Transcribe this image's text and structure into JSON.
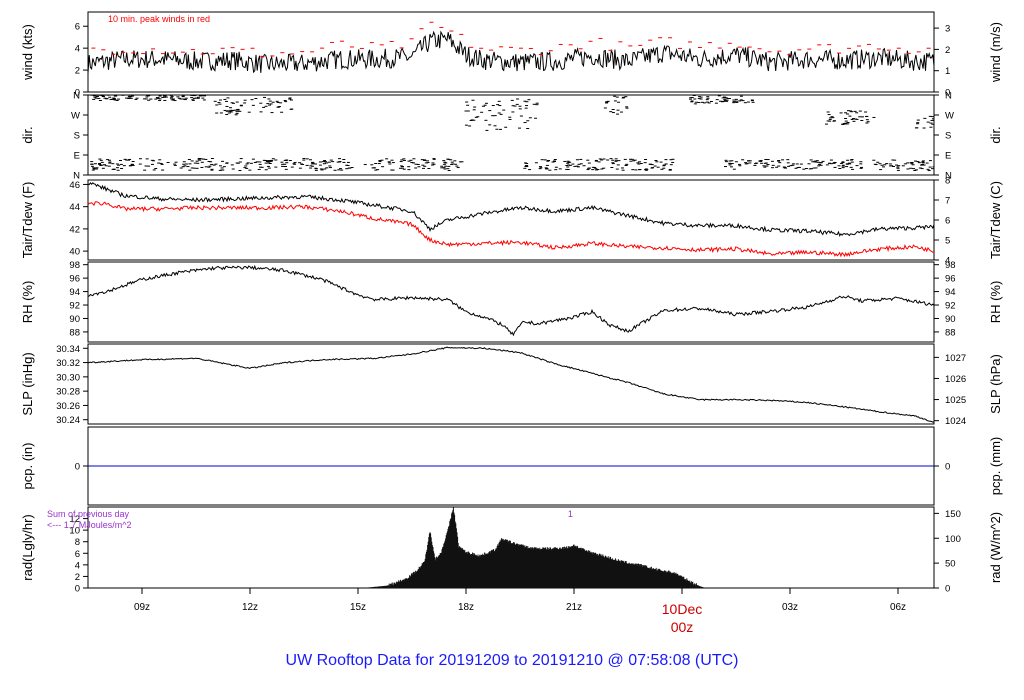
{
  "chart_data": {
    "type": "line",
    "title": "UW Rooftop Data for 20191209  to  20191210 @ 07:58:08  (UTC)",
    "x_axis": {
      "unit": "UTC hour",
      "range": [
        7.5,
        31.0
      ],
      "tick_labels": [
        {
          "x": 9,
          "label": "09z"
        },
        {
          "x": 12,
          "label": "12z"
        },
        {
          "x": 15,
          "label": "15z"
        },
        {
          "x": 18,
          "label": "18z"
        },
        {
          "x": 21,
          "label": "21z"
        },
        {
          "x": 24,
          "label": "10Dec",
          "label2": "00z"
        },
        {
          "x": 27,
          "label": "03z"
        },
        {
          "x": 30,
          "label": "06z"
        }
      ]
    },
    "panels": [
      {
        "id": "wind",
        "ylabel_left": "wind (kts)",
        "ylabel_right": "wind (m/s)",
        "left_ticks": [
          0,
          2,
          4,
          6
        ],
        "right_ticks": [
          0,
          1,
          2,
          3
        ],
        "ylim": [
          0,
          7.3
        ],
        "annotation": "10 min. peak winds in red",
        "series": [
          {
            "name": "wind speed",
            "color": "#000000",
            "style": "line",
            "x": [
              7.5,
              8.5,
              9.5,
              10.5,
              11.5,
              12.5,
              13.5,
              14.5,
              15.5,
              16.5,
              17.0,
              17.5,
              18.0,
              18.5,
              19.5,
              20.5,
              21.5,
              22.5,
              23.5,
              24.5,
              25.5,
              26.5,
              27.5,
              28.5,
              29.5,
              30.5,
              31.0
            ],
            "y": [
              2.6,
              3.0,
              3.0,
              2.8,
              2.9,
              2.5,
              2.6,
              3.0,
              3.0,
              3.2,
              4.6,
              4.8,
              3.4,
              2.9,
              2.7,
              2.8,
              3.3,
              2.8,
              3.6,
              3.0,
              3.4,
              2.7,
              3.0,
              2.9,
              3.1,
              2.8,
              2.8
            ]
          },
          {
            "name": "peak",
            "color": "#ff0000",
            "style": "dash",
            "x": [
              7.5,
              8.5,
              9.5,
              10.5,
              11.5,
              12.5,
              13.5,
              14.5,
              15.5,
              16.5,
              17.0,
              17.5,
              18.0,
              18.5,
              19.5,
              20.5,
              21.5,
              22.5,
              23.5,
              24.5,
              25.5,
              26.5,
              27.5,
              28.5,
              29.5,
              30.5,
              31.0
            ],
            "y": [
              3.8,
              4.0,
              3.9,
              3.7,
              3.8,
              3.5,
              3.6,
              4.3,
              4.0,
              4.4,
              6.2,
              5.6,
              4.6,
              3.9,
              3.8,
              4.0,
              4.6,
              4.0,
              4.6,
              4.2,
              4.6,
              3.8,
              4.0,
              4.0,
              4.3,
              3.9,
              3.8
            ]
          }
        ]
      },
      {
        "id": "dir",
        "ylabel_left": "dir.",
        "ylabel_right": "dir.",
        "left_ticks": [
          "N",
          "E",
          "S",
          "W",
          "N"
        ],
        "right_ticks": [
          "N",
          "E",
          "S",
          "W",
          "N"
        ],
        "ylim": [
          0,
          360
        ],
        "series": [
          {
            "name": "direction",
            "color": "#000000",
            "style": "points",
            "segments": [
              {
                "x": [
                  7.6,
                  14.9
                ],
                "band": [
                  20,
                  75
                ]
              },
              {
                "x": [
                  7.6,
                  10.8
                ],
                "band": [
                  335,
                  360
                ]
              },
              {
                "x": [
                  11.0,
                  13.2
                ],
                "band": [
                  270,
                  350
                ]
              },
              {
                "x": [
                  15.2,
                  17.9
                ],
                "band": [
                  20,
                  75
                ]
              },
              {
                "x": [
                  18.0,
                  20.0
                ],
                "band": [
                  200,
                  345
                ]
              },
              {
                "x": [
                  19.6,
                  23.8
                ],
                "band": [
                  20,
                  75
                ]
              },
              {
                "x": [
                  21.8,
                  22.5
                ],
                "band": [
                  270,
                  355
                ]
              },
              {
                "x": [
                  24.2,
                  26.0
                ],
                "band": [
                  320,
                  358
                ]
              },
              {
                "x": [
                  25.2,
                  29.0
                ],
                "band": [
                  25,
                  70
                ]
              },
              {
                "x": [
                  28.0,
                  29.5
                ],
                "band": [
                  225,
                  290
                ]
              },
              {
                "x": [
                  29.3,
                  31.0
                ],
                "band": [
                  20,
                  70
                ]
              },
              {
                "x": [
                  30.5,
                  31.0
                ],
                "band": [
                  210,
                  265
                ]
              }
            ]
          }
        ]
      },
      {
        "id": "temp",
        "ylabel_left": "Tair/Tdew (F)",
        "ylabel_right": "Tair/Tdew (C)",
        "left_ticks": [
          40,
          42,
          44,
          46
        ],
        "right_ticks": [
          4,
          5,
          6,
          7,
          8
        ],
        "ylim": [
          39.2,
          46.4
        ],
        "series": [
          {
            "name": "Tair",
            "color": "#000000",
            "style": "line",
            "x": [
              7.5,
              8.0,
              8.5,
              9.5,
              10.5,
              11.5,
              12.5,
              13.5,
              14.5,
              15.5,
              16.5,
              17.0,
              17.5,
              18.5,
              19.5,
              20.5,
              21.5,
              22.5,
              23.5,
              24.5,
              25.5,
              26.5,
              27.5,
              28.5,
              29.5,
              30.5,
              31.0
            ],
            "y": [
              46.2,
              45.6,
              45.0,
              44.7,
              44.6,
              44.7,
              44.8,
              44.9,
              44.6,
              44.1,
              43.6,
              42.0,
              42.8,
              43.4,
              43.9,
              43.6,
              43.9,
              43.2,
              42.5,
              42.3,
              42.3,
              41.9,
              41.8,
              41.5,
              42.0,
              42.1,
              42.2
            ]
          },
          {
            "name": "Tdew",
            "color": "#ff0000",
            "style": "line",
            "x": [
              7.5,
              8.0,
              8.5,
              9.5,
              10.5,
              11.5,
              12.5,
              13.5,
              14.5,
              15.5,
              16.5,
              17.0,
              17.5,
              18.5,
              19.5,
              20.5,
              21.5,
              22.5,
              23.5,
              24.5,
              25.5,
              26.5,
              27.5,
              28.5,
              29.5,
              30.5,
              31.0
            ],
            "y": [
              44.3,
              44.3,
              43.8,
              43.8,
              43.9,
              43.9,
              43.9,
              44.0,
              43.6,
              42.9,
              42.4,
              41.0,
              40.6,
              40.7,
              40.8,
              40.3,
              40.7,
              40.4,
              40.3,
              40.1,
              40.2,
              39.7,
              39.9,
              39.7,
              40.2,
              40.4,
              40.0
            ]
          }
        ]
      },
      {
        "id": "rh",
        "ylabel_left": "RH (%)",
        "ylabel_right": "RH (%)",
        "left_ticks": [
          88,
          90,
          92,
          94,
          96,
          98
        ],
        "right_ticks": [
          88,
          90,
          92,
          94,
          96,
          98
        ],
        "ylim": [
          86.5,
          98.4
        ],
        "series": [
          {
            "name": "RH",
            "color": "#000000",
            "style": "line",
            "x": [
              7.5,
              8.0,
              9.0,
              10.0,
              11.0,
              12.0,
              13.0,
              14.0,
              15.0,
              15.5,
              16.5,
              17.5,
              18.0,
              18.5,
              19.0,
              19.3,
              19.6,
              20.0,
              21.0,
              21.5,
              22.0,
              22.5,
              23.5,
              24.5,
              25.5,
              26.5,
              27.5,
              28.5,
              29.0,
              30.0,
              31.0
            ],
            "y": [
              93.5,
              94.0,
              95.8,
              96.8,
              97.5,
              97.6,
              97.1,
              95.8,
              93.5,
              92.8,
              93.1,
              92.8,
              91.0,
              90.2,
              89.1,
              87.6,
              89.5,
              89.2,
              90.2,
              91.0,
              89.0,
              88.1,
              91.2,
              91.5,
              90.6,
              91.1,
              91.7,
              93.3,
              92.6,
              93.0,
              92.0
            ]
          }
        ]
      },
      {
        "id": "slp",
        "ylabel_left": "SLP (inHg)",
        "ylabel_right": "SLP (hPa)",
        "left_ticks": [
          "30.24",
          "30.26",
          "30.28",
          "30.30",
          "30.32",
          "30.34"
        ],
        "right_ticks": [
          1024,
          1025,
          1026,
          1027
        ],
        "ylim": [
          30.234,
          30.346
        ],
        "series": [
          {
            "name": "SLP",
            "color": "#000000",
            "style": "line",
            "x": [
              7.5,
              9.0,
              10.5,
              12.0,
              13.0,
              14.0,
              15.5,
              16.5,
              17.5,
              18.5,
              19.5,
              20.5,
              21.5,
              22.5,
              23.5,
              24.5,
              25.5,
              26.5,
              27.5,
              28.5,
              29.5,
              30.5,
              31.0
            ],
            "y": [
              30.32,
              30.324,
              30.326,
              30.312,
              30.32,
              30.324,
              30.326,
              30.332,
              30.341,
              30.34,
              30.334,
              30.318,
              30.305,
              30.292,
              30.276,
              30.268,
              30.268,
              30.267,
              30.264,
              30.258,
              30.251,
              30.245,
              30.236
            ]
          }
        ]
      },
      {
        "id": "pcp",
        "ylabel_left": "pcp. (in)",
        "ylabel_right": "pcp. (mm)",
        "left_ticks": [
          0
        ],
        "right_ticks": [
          0
        ],
        "ylim": [
          -0.5,
          0.5
        ],
        "series": [
          {
            "name": "precip",
            "color": "#0000cc",
            "style": "line",
            "x": [
              7.5,
              31.0
            ],
            "y": [
              0,
              0
            ]
          }
        ]
      },
      {
        "id": "rad",
        "ylabel_left": "rad(Lgly/hr)",
        "ylabel_right": "rad (W/m^2)",
        "left_ticks": [
          0,
          2,
          4,
          6,
          8,
          10,
          12
        ],
        "right_ticks": [
          0,
          50,
          100,
          150
        ],
        "ylim": [
          0,
          14
        ],
        "annotation_1": "Sum of previous day",
        "annotation_2": "<--- 1.7 MJoules/m^2",
        "annotation_3": "1",
        "series": [
          {
            "name": "radiation",
            "color": "#111111",
            "style": "bar",
            "x": [
              15.3,
              15.8,
              16.3,
              16.6,
              16.85,
              17.0,
              17.15,
              17.3,
              17.5,
              17.65,
              17.8,
              18.0,
              18.4,
              18.8,
              19.0,
              19.3,
              19.8,
              20.3,
              20.8,
              21.0,
              21.3,
              21.8,
              22.3,
              22.8,
              23.3,
              23.8,
              24.2,
              24.5,
              24.6
            ],
            "y": [
              0.1,
              0.4,
              1.5,
              2.8,
              4.5,
              9.8,
              5.0,
              6.0,
              10.0,
              14.0,
              7.2,
              6.2,
              5.6,
              6.6,
              8.5,
              7.8,
              6.9,
              6.8,
              7.0,
              7.4,
              6.5,
              5.6,
              4.6,
              4.0,
              3.2,
              2.6,
              1.2,
              0.3,
              0.1
            ]
          }
        ]
      }
    ]
  }
}
